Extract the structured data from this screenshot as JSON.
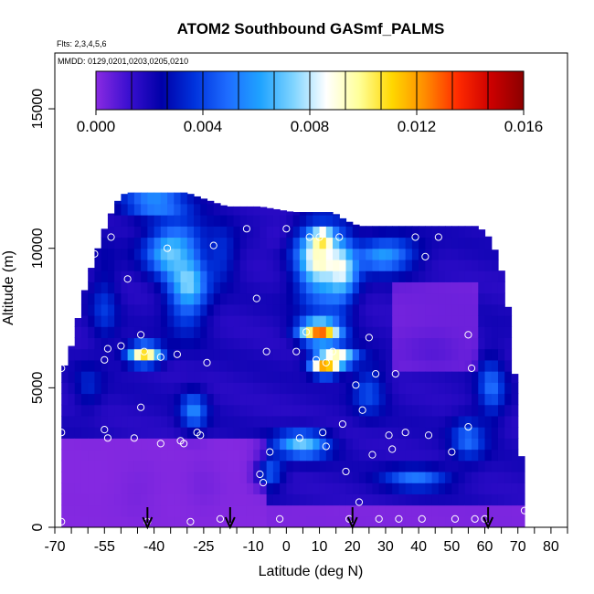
{
  "chart_data": {
    "type": "heatmap",
    "title": "ATOM2 Southbound GASmf_PALMS",
    "subtitle_flights": "Flts: 2,3,4,5,6",
    "legend_box_label": "MMDD: 0129,0201,0203,0205,0210",
    "xlabel": "Latitude (deg N)",
    "ylabel": "Altitude (m)",
    "xlim": [
      -70,
      85
    ],
    "ylim": [
      0,
      17000
    ],
    "x_ticks": [
      -70,
      -65,
      -60,
      -55,
      -50,
      -45,
      -40,
      -35,
      -30,
      -25,
      -20,
      -15,
      -10,
      -5,
      0,
      5,
      10,
      15,
      20,
      25,
      30,
      35,
      40,
      45,
      50,
      55,
      60,
      65,
      70,
      75,
      80,
      85
    ],
    "x_tick_labels": [
      {
        "value": -70,
        "label": "-70"
      },
      {
        "value": -55,
        "label": "-55"
      },
      {
        "value": -40,
        "label": "-40"
      },
      {
        "value": -25,
        "label": "-25"
      },
      {
        "value": -10,
        "label": "-10"
      },
      {
        "value": 0,
        "label": "0"
      },
      {
        "value": 10,
        "label": "10"
      },
      {
        "value": 20,
        "label": "20"
      },
      {
        "value": 30,
        "label": "30"
      },
      {
        "value": 40,
        "label": "40"
      },
      {
        "value": 50,
        "label": "50"
      },
      {
        "value": 60,
        "label": "60"
      },
      {
        "value": 70,
        "label": "70"
      },
      {
        "value": 80,
        "label": "80"
      }
    ],
    "y_ticks": [
      {
        "value": 0,
        "label": "0"
      },
      {
        "value": 5000,
        "label": "5000"
      },
      {
        "value": 10000,
        "label": "10000"
      },
      {
        "value": 15000,
        "label": "15000"
      }
    ],
    "colorbar": {
      "min": 0.0,
      "max": 0.016,
      "ticks": [
        {
          "value": 0.0,
          "label": "0.000"
        },
        {
          "value": 0.004,
          "label": "0.004"
        },
        {
          "value": 0.008,
          "label": "0.008"
        },
        {
          "value": 0.012,
          "label": "0.012"
        },
        {
          "value": 0.016,
          "label": "0.016"
        }
      ],
      "colors": [
        "#8a2be2",
        "#3a0fd0",
        "#0000a8",
        "#0033dd",
        "#1e6cff",
        "#1fa3ff",
        "#7fd4ff",
        "#ffffff",
        "#ffff99",
        "#ffd700",
        "#ff8c00",
        "#ff2a00",
        "#cc0000",
        "#8b0000"
      ]
    },
    "arrows_lat": [
      -42,
      -17,
      20,
      61
    ],
    "data_extent": {
      "lat_min": -68,
      "lat_max": 72,
      "alt_top_by_lat": [
        [
          -68,
          5600
        ],
        [
          -66,
          6000
        ],
        [
          -64,
          7000
        ],
        [
          -62,
          8000
        ],
        [
          -60,
          9000
        ],
        [
          -58,
          9600
        ],
        [
          -56,
          10400
        ],
        [
          -54,
          11000
        ],
        [
          -52,
          11500
        ],
        [
          -50,
          11900
        ],
        [
          -48,
          12000
        ],
        [
          -30,
          12000
        ],
        [
          -28,
          11900
        ],
        [
          -18,
          11500
        ],
        [
          -8,
          11500
        ],
        [
          2,
          11300
        ],
        [
          14,
          11300
        ],
        [
          18,
          11000
        ],
        [
          22,
          10800
        ],
        [
          58,
          10800
        ],
        [
          62,
          10300
        ],
        [
          64,
          9600
        ],
        [
          66,
          8800
        ],
        [
          68,
          7000
        ],
        [
          70,
          4000
        ],
        [
          72,
          1100
        ]
      ]
    },
    "field_blobs": [
      {
        "lat": -43,
        "alt": 6200,
        "value": 0.012,
        "sx": 5,
        "sy": 350
      },
      {
        "lat": -34,
        "alt": 10000,
        "value": 0.0075,
        "sx": 8,
        "sy": 900
      },
      {
        "lat": -30,
        "alt": 8600,
        "value": 0.007,
        "sx": 6,
        "sy": 1300
      },
      {
        "lat": -40,
        "alt": 11600,
        "value": 0.0055,
        "sx": 10,
        "sy": 500
      },
      {
        "lat": -20,
        "alt": 9800,
        "value": 0.004,
        "sx": 5,
        "sy": 900
      },
      {
        "lat": -2,
        "alt": 10400,
        "value": 0.0012,
        "sx": 6,
        "sy": 500
      },
      {
        "lat": 10,
        "alt": 9500,
        "value": 0.0088,
        "sx": 7,
        "sy": 1400
      },
      {
        "lat": 16,
        "alt": 9200,
        "value": 0.0082,
        "sx": 5,
        "sy": 1200
      },
      {
        "lat": 11,
        "alt": 10400,
        "value": 0.013,
        "sx": 3,
        "sy": 250
      },
      {
        "lat": 10,
        "alt": 7000,
        "value": 0.012,
        "sx": 6,
        "sy": 400
      },
      {
        "lat": 12,
        "alt": 5800,
        "value": 0.0145,
        "sx": 4,
        "sy": 300
      },
      {
        "lat": 15,
        "alt": 6100,
        "value": 0.011,
        "sx": 6,
        "sy": 350
      },
      {
        "lat": 30,
        "alt": 9800,
        "value": 0.0065,
        "sx": 9,
        "sy": 600
      },
      {
        "lat": 45,
        "alt": 6500,
        "value": 0.0008,
        "sx": 9,
        "sy": 700
      },
      {
        "lat": 5,
        "alt": 3000,
        "value": 0.0065,
        "sx": 8,
        "sy": 500
      },
      {
        "lat": -5,
        "alt": 2000,
        "value": 0.0052,
        "sx": 4,
        "sy": 500
      },
      {
        "lat": -28,
        "alt": 4200,
        "value": 0.005,
        "sx": 4,
        "sy": 700
      },
      {
        "lat": 40,
        "alt": 1800,
        "value": 0.005,
        "sx": 10,
        "sy": 400
      },
      {
        "lat": 55,
        "alt": 3200,
        "value": 0.0045,
        "sx": 5,
        "sy": 800
      },
      {
        "lat": 62,
        "alt": 5000,
        "value": 0.0045,
        "sx": 4,
        "sy": 1200
      },
      {
        "lat": 25,
        "alt": 5000,
        "value": 0.0042,
        "sx": 5,
        "sy": 900
      },
      {
        "lat": -55,
        "alt": 8000,
        "value": 0.0035,
        "sx": 4,
        "sy": 1500
      },
      {
        "lat": -60,
        "alt": 5000,
        "value": 0.0032,
        "sx": 4,
        "sy": 800
      },
      {
        "lat": -45,
        "alt": 1300,
        "value": 0.0003,
        "sx": 6,
        "sy": 900
      },
      {
        "lat": -25,
        "alt": 1500,
        "value": 0.0003,
        "sx": 5,
        "sy": 1000
      }
    ],
    "samples": [
      [
        -68,
        200
      ],
      [
        -68,
        3400
      ],
      [
        -68,
        5700
      ],
      [
        -58,
        9800
      ],
      [
        -55,
        3500
      ],
      [
        -54,
        3200
      ],
      [
        -54,
        6400
      ],
      [
        -55,
        6000
      ],
      [
        -53,
        10400
      ],
      [
        -50,
        6500
      ],
      [
        -48,
        8900
      ],
      [
        -46,
        3200
      ],
      [
        -44,
        4300
      ],
      [
        -44,
        6900
      ],
      [
        -43,
        6300
      ],
      [
        -42,
        200
      ],
      [
        -38,
        3000
      ],
      [
        -38,
        6100
      ],
      [
        -36,
        10000
      ],
      [
        -33,
        6200
      ],
      [
        -32,
        3100
      ],
      [
        -31,
        3000
      ],
      [
        -29,
        200
      ],
      [
        -27,
        3400
      ],
      [
        -26,
        3300
      ],
      [
        -24,
        5900
      ],
      [
        -22,
        10100
      ],
      [
        -20,
        300
      ],
      [
        -12,
        10700
      ],
      [
        -9,
        8200
      ],
      [
        -8,
        1900
      ],
      [
        -7,
        1600
      ],
      [
        -6,
        6300
      ],
      [
        -5,
        2700
      ],
      [
        -2,
        300
      ],
      [
        0,
        10700
      ],
      [
        3,
        6300
      ],
      [
        4,
        3200
      ],
      [
        6,
        7000
      ],
      [
        7,
        10400
      ],
      [
        9,
        6000
      ],
      [
        10,
        10400
      ],
      [
        11,
        3400
      ],
      [
        12,
        2900
      ],
      [
        12,
        5900
      ],
      [
        14,
        6300
      ],
      [
        16,
        10400
      ],
      [
        17,
        3700
      ],
      [
        18,
        2000
      ],
      [
        19,
        300
      ],
      [
        21,
        5100
      ],
      [
        22,
        900
      ],
      [
        23,
        4200
      ],
      [
        25,
        6800
      ],
      [
        26,
        2600
      ],
      [
        27,
        5500
      ],
      [
        28,
        300
      ],
      [
        31,
        3300
      ],
      [
        32,
        2800
      ],
      [
        33,
        5500
      ],
      [
        34,
        300
      ],
      [
        36,
        3400
      ],
      [
        39,
        10400
      ],
      [
        41,
        300
      ],
      [
        42,
        9700
      ],
      [
        43,
        3300
      ],
      [
        46,
        10400
      ],
      [
        50,
        2700
      ],
      [
        51,
        300
      ],
      [
        55,
        6900
      ],
      [
        55,
        3600
      ],
      [
        56,
        5700
      ],
      [
        57,
        300
      ],
      [
        60,
        300
      ],
      [
        66,
        10200
      ],
      [
        72,
        600
      ]
    ]
  }
}
